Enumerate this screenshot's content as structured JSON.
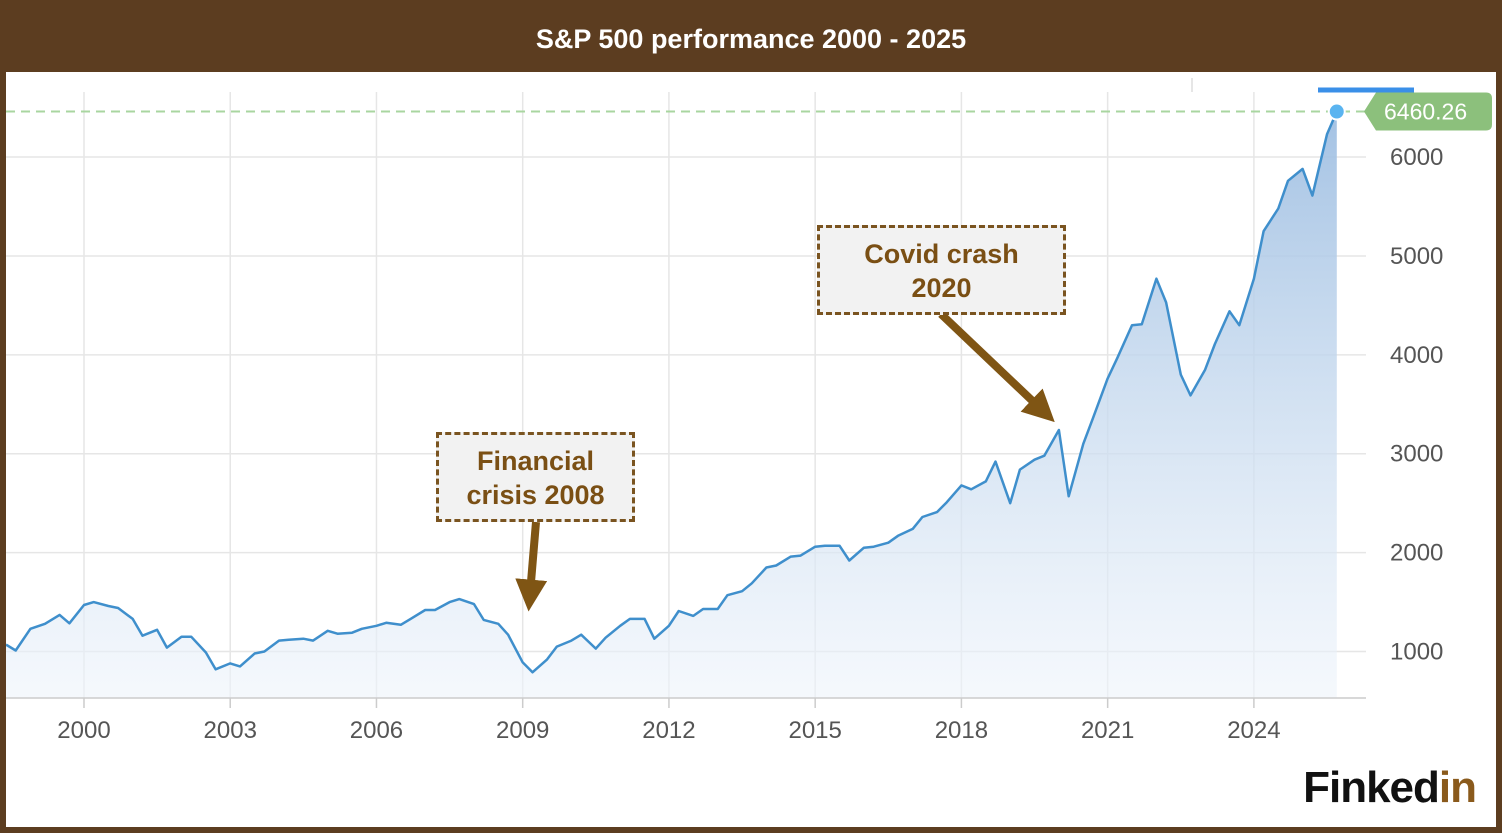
{
  "title": "S&P 500 performance 2000 - 2025",
  "brand": {
    "part1": "Finked",
    "part2": "in"
  },
  "annotations": [
    {
      "line1": "Financial",
      "line2": "crisis 2008"
    },
    {
      "line1": "Covid crash",
      "line2": "2020"
    }
  ],
  "colors": {
    "frame": "#5c3d20",
    "line": "#3f8fcc",
    "area": "#a8c5e4",
    "last_label": "#8cc07c",
    "annotation_text": "#7a4f14"
  },
  "chart_data": {
    "type": "area",
    "title": "S&P 500 performance 2000 - 2025",
    "x_ticks": [
      "2000",
      "2003",
      "2006",
      "2009",
      "2012",
      "2015",
      "2018",
      "2021",
      "2024"
    ],
    "y_ticks": [
      "1000",
      "2000",
      "3000",
      "4000",
      "5000",
      "6000"
    ],
    "xlim": [
      1998.4,
      2026.3
    ],
    "ylim": [
      530,
      6860
    ],
    "last_value": 6460.26,
    "last_value_label": "6460.26",
    "reference_line": 6460.26,
    "legend": "none",
    "grid": true,
    "series": [
      {
        "x": [
          1998.4,
          1998.6,
          1998.9,
          1999.2,
          1999.5,
          1999.7,
          2000.0,
          2000.2,
          2000.5,
          2000.7,
          2001.0,
          2001.2,
          2001.5,
          2001.7,
          2002.0,
          2002.2,
          2002.5,
          2002.7,
          2003.0,
          2003.2,
          2003.5,
          2003.7,
          2004.0,
          2004.2,
          2004.5,
          2004.7,
          2005.0,
          2005.2,
          2005.5,
          2005.7,
          2006.0,
          2006.2,
          2006.5,
          2006.7,
          2007.0,
          2007.2,
          2007.5,
          2007.7,
          2008.0,
          2008.2,
          2008.5,
          2008.7,
          2009.0,
          2009.2,
          2009.5,
          2009.7,
          2010.0,
          2010.2,
          2010.5,
          2010.7,
          2011.0,
          2011.2,
          2011.5,
          2011.7,
          2012.0,
          2012.2,
          2012.5,
          2012.7,
          2013.0,
          2013.2,
          2013.5,
          2013.7,
          2014.0,
          2014.2,
          2014.5,
          2014.7,
          2015.0,
          2015.2,
          2015.5,
          2015.7,
          2016.0,
          2016.2,
          2016.5,
          2016.7,
          2017.0,
          2017.2,
          2017.5,
          2017.7,
          2018.0,
          2018.2,
          2018.5,
          2018.7,
          2019.0,
          2019.2,
          2019.5,
          2019.7,
          2020.0,
          2020.2,
          2020.5,
          2020.7,
          2021.0,
          2021.2,
          2021.5,
          2021.7,
          2022.0,
          2022.2,
          2022.5,
          2022.7,
          2023.0,
          2023.2,
          2023.5,
          2023.7,
          2024.0,
          2024.2,
          2024.5,
          2024.7,
          2025.0,
          2025.2,
          2025.5,
          2025.7
        ],
        "y": [
          1070,
          1010,
          1230,
          1280,
          1370,
          1285,
          1470,
          1500,
          1460,
          1440,
          1330,
          1160,
          1220,
          1040,
          1150,
          1150,
          990,
          820,
          880,
          850,
          980,
          1000,
          1110,
          1120,
          1130,
          1110,
          1210,
          1180,
          1190,
          1230,
          1260,
          1290,
          1270,
          1330,
          1420,
          1420,
          1500,
          1530,
          1480,
          1320,
          1280,
          1170,
          890,
          790,
          920,
          1050,
          1110,
          1170,
          1030,
          1140,
          1260,
          1330,
          1330,
          1130,
          1260,
          1410,
          1360,
          1430,
          1430,
          1570,
          1610,
          1690,
          1850,
          1870,
          1960,
          1970,
          2060,
          2070,
          2070,
          1920,
          2050,
          2060,
          2100,
          2170,
          2240,
          2360,
          2410,
          2510,
          2680,
          2640,
          2720,
          2920,
          2500,
          2840,
          2940,
          2980,
          3240,
          2570,
          3100,
          3360,
          3760,
          3970,
          4300,
          4310,
          4770,
          4530,
          3800,
          3590,
          3850,
          4110,
          4440,
          4300,
          4770,
          5250,
          5480,
          5760,
          5880,
          5610,
          6230,
          6460
        ]
      }
    ]
  }
}
